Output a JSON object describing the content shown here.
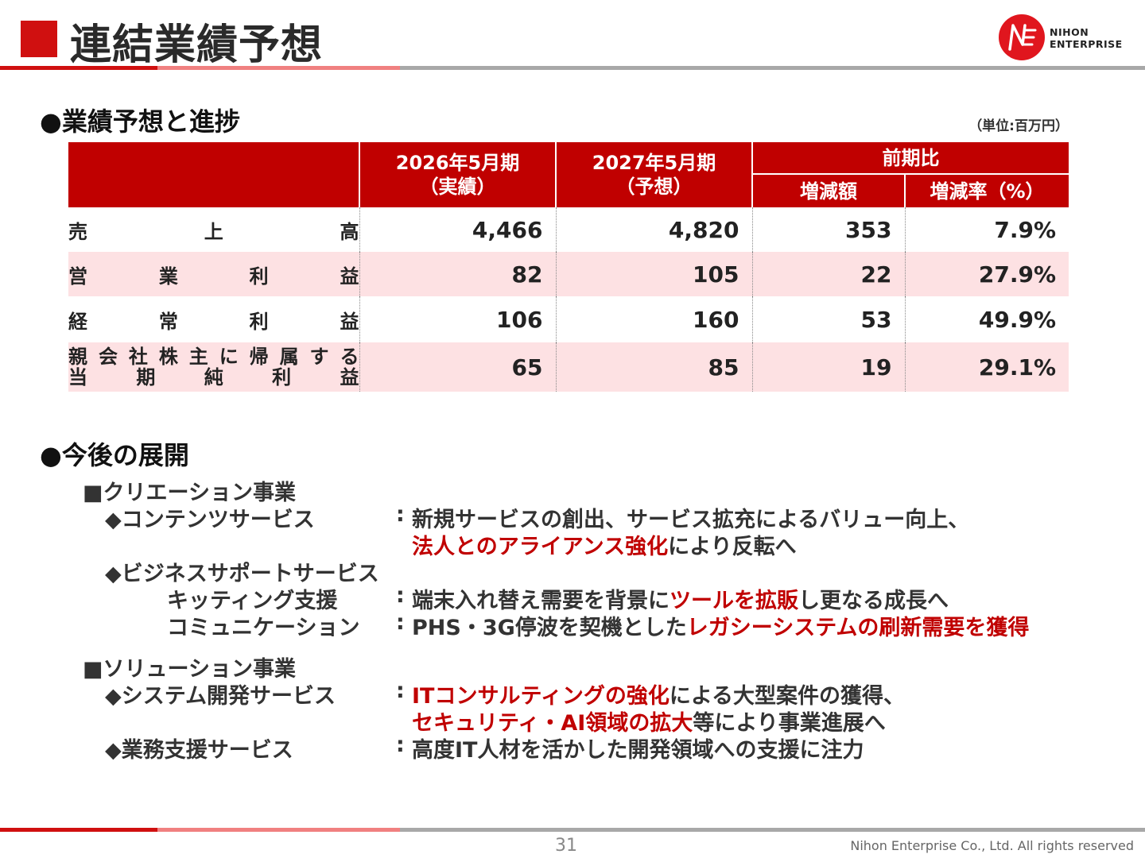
{
  "header": {
    "title": "連結業績予想",
    "logo_line1": "NIHON",
    "logo_line2": "ENTERPRISE"
  },
  "forecast": {
    "heading": "●業績予想と進捗",
    "unit": "（単位:百万円）",
    "columns": {
      "actual": "2026年5月期",
      "actual_sub": "（実績）",
      "forecast": "2027年5月期",
      "forecast_sub": "（予想）",
      "yoy": "前期比",
      "diff": "増減額",
      "rate": "増減率（%）"
    },
    "rows": [
      {
        "label_chars": [
          "売",
          "上",
          "高"
        ],
        "actual": "4,466",
        "forecast": "4,820",
        "diff": "353",
        "rate": "7.9%"
      },
      {
        "label_chars": [
          "営",
          "業",
          "利",
          "益"
        ],
        "actual": "82",
        "forecast": "105",
        "diff": "22",
        "rate": "27.9%"
      },
      {
        "label_chars": [
          "経",
          "常",
          "利",
          "益"
        ],
        "actual": "106",
        "forecast": "160",
        "diff": "53",
        "rate": "49.9%"
      },
      {
        "label_line1": [
          "親",
          "会",
          "社",
          "株",
          "主",
          "に",
          "帰",
          "属",
          "す",
          "る"
        ],
        "label_line2": [
          "当",
          "期",
          "純",
          "利",
          "益"
        ],
        "actual": "65",
        "forecast": "85",
        "diff": "19",
        "rate": "29.1%"
      }
    ]
  },
  "development": {
    "heading": "●今後の展開",
    "creation": {
      "title": "■クリエーション事業",
      "contents_label": "◆コンテンツサービス",
      "contents_colon": ":",
      "contents_line1": "新規サービスの創出、サービス拡充によるバリュー向上、",
      "contents_line2_red": "法人とのアライアンス強化",
      "contents_line2_rest": "により反転へ",
      "business_label": "◆ビジネスサポートサービス",
      "kitting_label": "キッティング支援",
      "kitting_colon": ":",
      "kitting_text1": "端末入れ替え需要を背景に",
      "kitting_red": "ツールを拡販",
      "kitting_text2": "し更なる成長へ",
      "comm_label": "コミュニケーション",
      "comm_colon": ":",
      "comm_text1": "PHS・3G停波を契機とした",
      "comm_red": "レガシーシステムの刷新需要を獲得"
    },
    "solution": {
      "title": "■ソリューション事業",
      "system_label": "◆システム開発サービス",
      "system_colon": ":",
      "system_red1": "ITコンサルティングの強化",
      "system_text1": "による大型案件の獲得、",
      "system_red2": "セキュリティ・AI領域の拡大",
      "system_text2": "等により事業進展へ",
      "support_label": "◆業務支援サービス",
      "support_colon": ":",
      "support_text": "高度IT人材を活かした開発領域への支援に注力"
    }
  },
  "footer": {
    "page": "31",
    "copyright": "Nihon Enterprise Co., Ltd. All rights reserved"
  },
  "colors": {
    "accent_red": "#c00000",
    "row_pink": "#fde1e3",
    "bar_gray": "#a8a8a8",
    "bar_pink": "#f08080"
  }
}
